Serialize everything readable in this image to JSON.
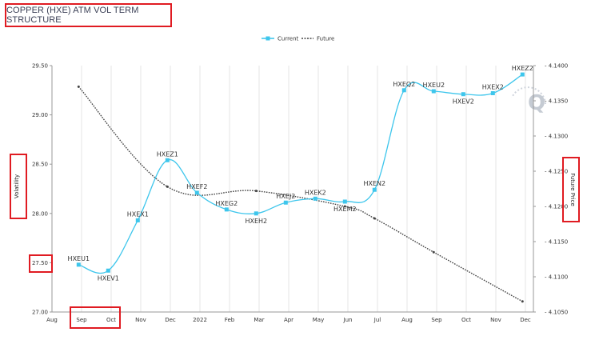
{
  "chart_data": {
    "type": "line",
    "title": "COPPER (HXE) ATM VOL TERM STRUCTURE",
    "legend": {
      "placement": "top-center",
      "entries": [
        "Current",
        "Future"
      ]
    },
    "y_left": {
      "label": "Volatility",
      "ticks": [
        "29.50",
        "29.00",
        "28.50",
        "28.00",
        "27.50",
        "27.00"
      ],
      "range": [
        27.0,
        29.5
      ]
    },
    "y_right": {
      "label": "Future Price",
      "ticks": [
        "4.1400",
        "4.1350",
        "4.1300",
        "4.1250",
        "4.1200",
        "4.1150",
        "4.1100",
        "4.1050"
      ],
      "range": [
        4.105,
        4.14
      ]
    },
    "x_ticks": [
      "Aug",
      "Sep",
      "Oct",
      "Nov",
      "Dec",
      "2022",
      "Feb",
      "Mar",
      "Apr",
      "May",
      "Jun",
      "Jul",
      "Aug",
      "Sep",
      "Oct",
      "Nov",
      "Dec"
    ],
    "series": [
      {
        "name": "Current",
        "color": "#3ec6ec",
        "points": [
          {
            "label": "HXEU1",
            "x": 0.9,
            "y": 27.48
          },
          {
            "label": "HXEV1",
            "x": 1.9,
            "y": 27.42
          },
          {
            "label": "HXEX1",
            "x": 2.9,
            "y": 27.93
          },
          {
            "label": "HXEZ1",
            "x": 3.9,
            "y": 28.54
          },
          {
            "label": "HXEF2",
            "x": 4.9,
            "y": 28.21
          },
          {
            "label": "HXEG2",
            "x": 5.9,
            "y": 28.04
          },
          {
            "label": "HXEH2",
            "x": 6.9,
            "y": 28.0
          },
          {
            "label": "HXEJ2",
            "x": 7.9,
            "y": 28.11
          },
          {
            "label": "HXEK2",
            "x": 8.9,
            "y": 28.15
          },
          {
            "label": "HXEM2",
            "x": 9.9,
            "y": 28.12
          },
          {
            "label": "HXEN2",
            "x": 10.9,
            "y": 28.24
          },
          {
            "label": "HXEQ2",
            "x": 11.9,
            "y": 29.25
          },
          {
            "label": "HXEU2",
            "x": 12.9,
            "y": 29.24
          },
          {
            "label": "HXEV2",
            "x": 13.9,
            "y": 29.21
          },
          {
            "label": "HXEX2",
            "x": 14.9,
            "y": 29.22
          },
          {
            "label": "HXEZ2",
            "x": 15.9,
            "y": 29.41
          }
        ]
      },
      {
        "name": "Future",
        "color": "#444444",
        "points": [
          {
            "x": 0.9,
            "y": 4.137
          },
          {
            "x": 3.9,
            "y": 4.1228
          },
          {
            "x": 6.9,
            "y": 4.1222
          },
          {
            "x": 9.9,
            "y": 4.12
          },
          {
            "x": 10.9,
            "y": 4.1183
          },
          {
            "x": 12.9,
            "y": 4.1135
          },
          {
            "x": 15.9,
            "y": 4.1065
          }
        ]
      }
    ]
  },
  "watermark": "Q"
}
